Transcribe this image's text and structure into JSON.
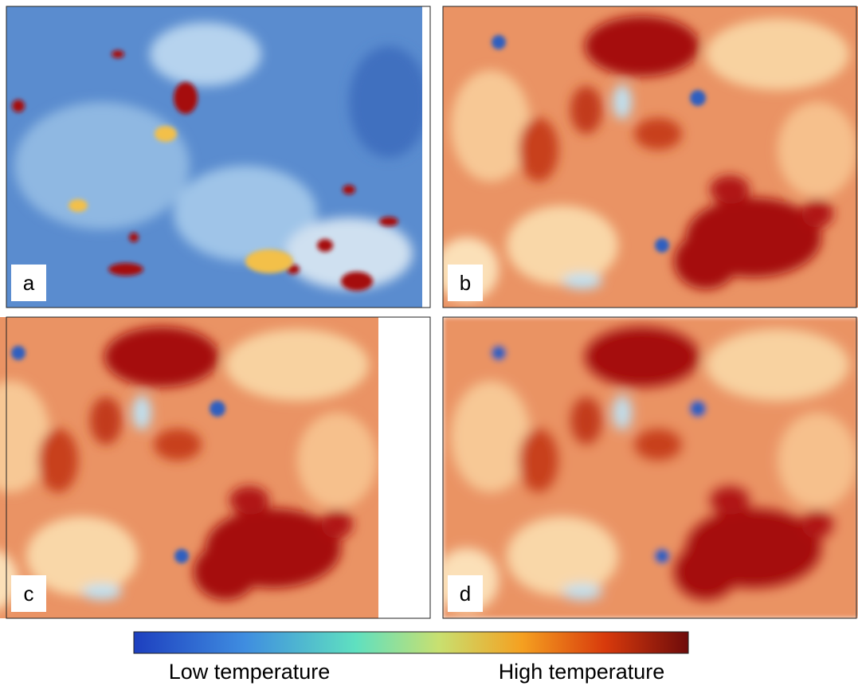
{
  "panels": [
    {
      "label": "a"
    },
    {
      "label": "b"
    },
    {
      "label": "c"
    },
    {
      "label": "d"
    }
  ],
  "colorbar": {
    "low_label": "Low temperature",
    "high_label": "High temperature"
  }
}
